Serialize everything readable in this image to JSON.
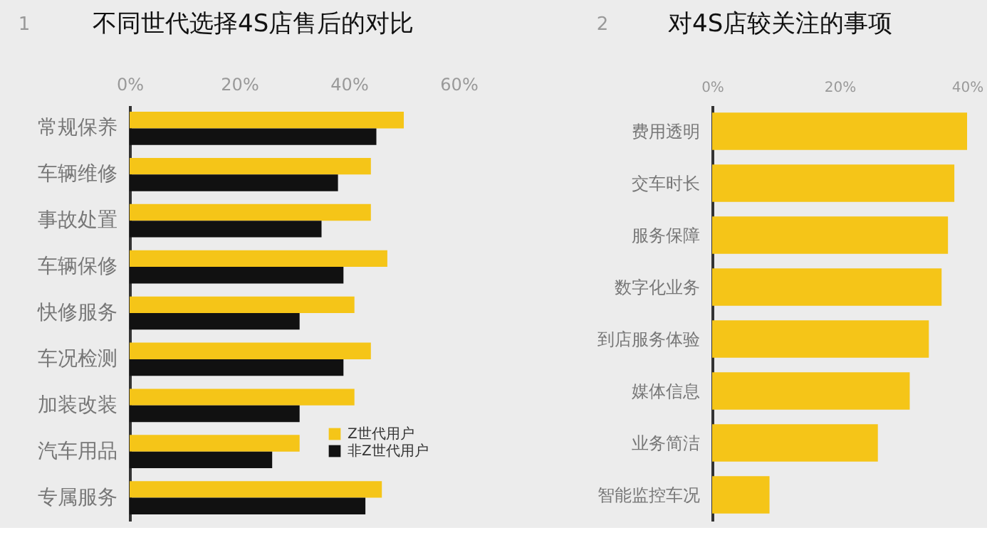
{
  "chart_data": [
    {
      "type": "bar",
      "orientation": "horizontal",
      "title": "不同世代选择4S店售后的对比",
      "annotations": [
        "1"
      ],
      "categories": [
        "常规保养",
        "车辆维修",
        "事故处置",
        "车辆保修",
        "快修服务",
        "车况检测",
        "加装改装",
        "汽车用品",
        "专属服务"
      ],
      "series": [
        {
          "name": "Z世代用户",
          "color": "#f5c518",
          "values": [
            50,
            44,
            44,
            47,
            41,
            44,
            41,
            31,
            46
          ]
        },
        {
          "name": "非Z世代用户",
          "color": "#111111",
          "values": [
            45,
            38,
            35,
            39,
            31,
            39,
            31,
            26,
            43
          ]
        }
      ],
      "xlim": [
        0,
        60
      ],
      "xticks": [
        {
          "value": 0,
          "label": "0%"
        },
        {
          "value": 20,
          "label": "20%"
        },
        {
          "value": 40,
          "label": "40%"
        },
        {
          "value": 60,
          "label": "60%"
        }
      ],
      "grid": false,
      "legend": "bottom right"
    },
    {
      "type": "bar",
      "orientation": "horizontal",
      "title": "对4S店较关注的事项",
      "annotations": [
        "2"
      ],
      "categories": [
        "费用透明",
        "交车时长",
        "服务保障",
        "数字化业务",
        "到店服务体验",
        "媒体信息",
        "业务简洁",
        "智能监控车况"
      ],
      "series": [
        {
          "color": "#f5c518",
          "values": [
            40,
            38,
            37,
            36,
            34,
            31,
            26,
            9
          ]
        }
      ],
      "xlim": [
        0,
        40
      ],
      "xticks": [
        {
          "value": 0,
          "label": "0%"
        },
        {
          "value": 20,
          "label": "20%"
        },
        {
          "value": 40,
          "label": "40%"
        }
      ],
      "grid": false,
      "legend": false
    }
  ]
}
